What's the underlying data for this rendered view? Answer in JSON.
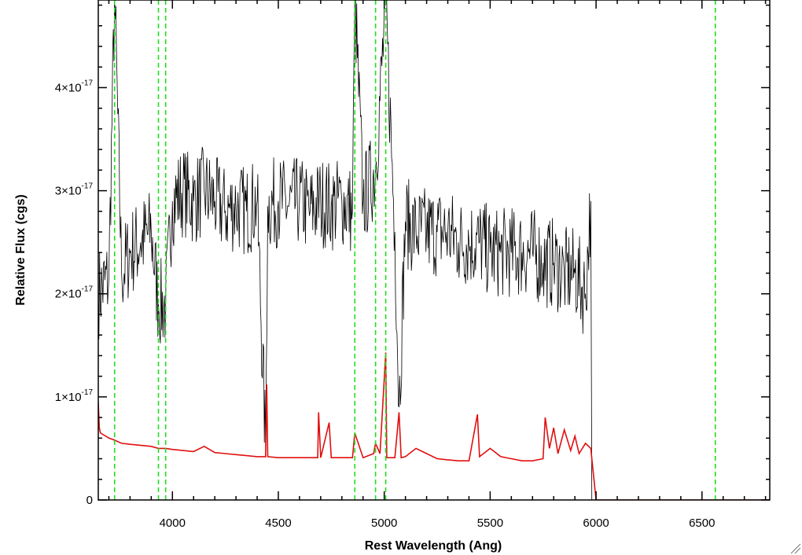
{
  "chart_data": {
    "type": "line",
    "xlabel": "Rest Wavelength (Ang)",
    "ylabel": "Relative Flux (cgs)",
    "xlim": [
      3650,
      6820
    ],
    "ylim": [
      0,
      4.85e-17
    ],
    "x_ticks": [
      {
        "value": 4000,
        "label": "4000"
      },
      {
        "value": 4500,
        "label": "4500"
      },
      {
        "value": 5000,
        "label": "5000"
      },
      {
        "value": 5500,
        "label": "5500"
      },
      {
        "value": 6000,
        "label": "6000"
      },
      {
        "value": 6500,
        "label": "6500"
      }
    ],
    "y_ticks": [
      {
        "value": 0,
        "label": "0",
        "mantissa": "0",
        "exponent": ""
      },
      {
        "value": 1e-17,
        "label": "1×10^-17",
        "mantissa": "1×10",
        "exponent": "-17"
      },
      {
        "value": 2e-17,
        "label": "2×10^-17",
        "mantissa": "2×10",
        "exponent": "-17"
      },
      {
        "value": 3e-17,
        "label": "3×10^-17",
        "mantissa": "3×10",
        "exponent": "-17"
      },
      {
        "value": 4e-17,
        "label": "4×10^-17",
        "mantissa": "4×10",
        "exponent": "-17"
      }
    ],
    "grid": false,
    "series": [
      {
        "color": "#000000",
        "x": [
          3650,
          3700,
          3727,
          3760,
          3800,
          3850,
          3900,
          3934,
          3968,
          4000,
          4050,
          4100,
          4150,
          4200,
          4250,
          4300,
          4350,
          4400,
          4440,
          4450,
          4500,
          4550,
          4600,
          4650,
          4700,
          4750,
          4800,
          4850,
          4861,
          4900,
          4959,
          5007,
          5050,
          5070,
          5100,
          5150,
          5200,
          5250,
          5300,
          5350,
          5400,
          5450,
          5500,
          5550,
          5600,
          5650,
          5700,
          5750,
          5800,
          5850,
          5900,
          5950,
          5975,
          5980,
          6000,
          6500,
          6820
        ],
        "y": [
          2e-17,
          2.15e-17,
          4.9e-17,
          2.2e-17,
          2.4e-17,
          2.5e-17,
          2.6e-17,
          1.9e-17,
          1.9e-17,
          2.9e-17,
          3e-17,
          2.9e-17,
          3e-17,
          2.9e-17,
          2.8e-17,
          2.85e-17,
          2.8e-17,
          2.9e-17,
          5e-18,
          2.85e-17,
          2.9e-17,
          2.85e-17,
          2.9e-17,
          2.8e-17,
          2.9e-17,
          2.85e-17,
          2.9e-17,
          2.8e-17,
          4.9e-17,
          2.9e-17,
          3.2e-17,
          4.8e-17,
          2.6e-17,
          9e-18,
          2.7e-17,
          2.6e-17,
          2.6e-17,
          2.6e-17,
          2.6e-17,
          2.5e-17,
          2.5e-17,
          2.5e-17,
          2.4e-17,
          2.4e-17,
          2.4e-17,
          2.4e-17,
          2.4e-17,
          2.3e-17,
          2.3e-17,
          2.2e-17,
          2.2e-17,
          2e-17,
          2.9e-17,
          0,
          0,
          0,
          0
        ]
      },
      {
        "color": "#e01010",
        "x": [
          3650,
          3655,
          3660,
          3700,
          3727,
          3760,
          3800,
          3900,
          3934,
          3968,
          4000,
          4050,
          4100,
          4150,
          4200,
          4250,
          4300,
          4350,
          4400,
          4440,
          4445,
          4450,
          4500,
          4550,
          4600,
          4650,
          4686,
          4690,
          4700,
          4740,
          4750,
          4800,
          4850,
          4861,
          4900,
          4950,
          4959,
          4980,
          5007,
          5012,
          5050,
          5070,
          5080,
          5100,
          5150,
          5200,
          5250,
          5300,
          5350,
          5400,
          5440,
          5450,
          5500,
          5550,
          5600,
          5650,
          5700,
          5750,
          5760,
          5780,
          5800,
          5820,
          5850,
          5880,
          5900,
          5920,
          5950,
          5975,
          5980,
          6000,
          6500,
          6820
        ],
        "y": [
          9.5e-18,
          7e-18,
          6.5e-18,
          6e-18,
          5.8e-18,
          5.5e-18,
          5.4e-18,
          5.2e-18,
          5e-18,
          5e-18,
          4.9e-18,
          4.8e-18,
          4.7e-18,
          5.2e-18,
          4.6e-18,
          4.5e-18,
          4.4e-18,
          4.3e-18,
          4.2e-18,
          4.2e-18,
          1.12e-17,
          4.2e-18,
          4.1e-18,
          4.1e-18,
          4.1e-18,
          4.1e-18,
          4.1e-18,
          8.5e-18,
          4.1e-18,
          7.5e-18,
          4.1e-18,
          4.1e-18,
          4.1e-18,
          6.5e-18,
          4.1e-18,
          4.5e-18,
          5.5e-18,
          4.5e-18,
          1.43e-17,
          4.1e-18,
          4.1e-18,
          8.5e-18,
          4.1e-18,
          4.2e-18,
          5e-18,
          4.5e-18,
          4e-18,
          3.9e-18,
          3.8e-18,
          3.8e-18,
          8.3e-18,
          4.2e-18,
          5e-18,
          4.2e-18,
          4e-18,
          3.8e-18,
          3.8e-18,
          4e-18,
          8e-18,
          5e-18,
          7e-18,
          4.5e-18,
          6.8e-18,
          4.8e-18,
          6.2e-18,
          4.5e-18,
          5.5e-18,
          5e-18,
          4e-18,
          0,
          0,
          0
        ]
      }
    ],
    "vertical_lines": {
      "color": "#22dd22",
      "style": "dashed",
      "x": [
        3727,
        3934,
        3968,
        4861,
        4959,
        5007,
        6563
      ]
    }
  }
}
